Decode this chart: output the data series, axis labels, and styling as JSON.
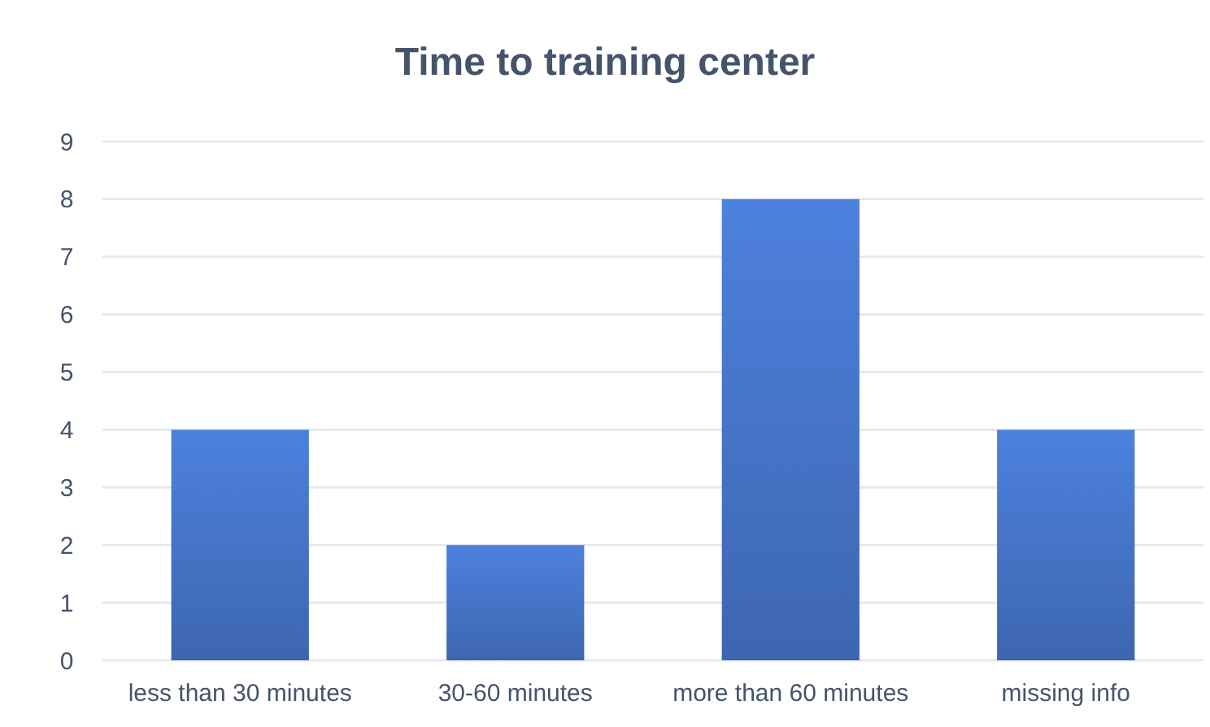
{
  "chart_data": {
    "type": "bar",
    "title": "Time to training center",
    "categories": [
      "less than 30 minutes",
      "30-60 minutes",
      "more than 60 minutes",
      "missing info"
    ],
    "values": [
      4,
      2,
      8,
      4
    ],
    "color": "#4472c4",
    "ylim": [
      0,
      9
    ],
    "yticks": [
      0,
      1,
      2,
      3,
      4,
      5,
      6,
      7,
      8,
      9
    ],
    "grid": "y"
  }
}
